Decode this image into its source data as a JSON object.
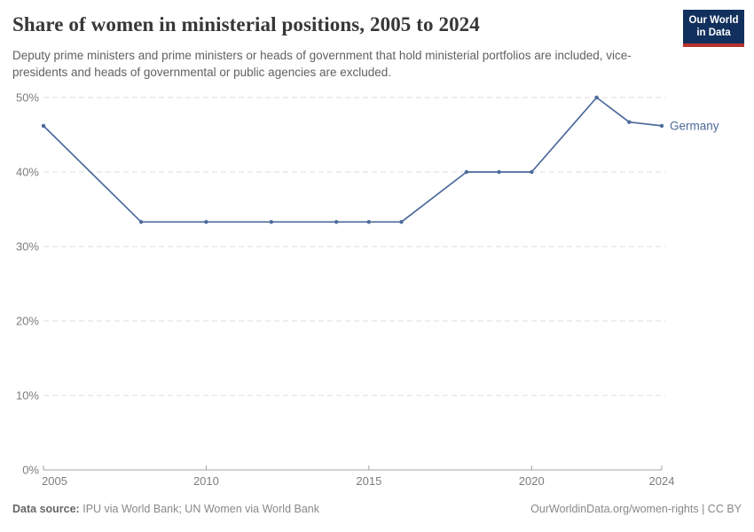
{
  "header": {
    "title": "Share of women in ministerial positions, 2005 to 2024",
    "subtitle": "Deputy prime ministers and prime ministers or heads of government that hold ministerial portfolios are included, vice-presidents and heads of governmental or public agencies are excluded.",
    "logo": {
      "line1": "Our World",
      "line2": "in Data"
    }
  },
  "footer": {
    "source_label": "Data source:",
    "source_text": "IPU via World Bank; UN Women via World Bank",
    "right_text": "OurWorldinData.org/women-rights | CC BY"
  },
  "colors": {
    "series_line": "#4C6A9C",
    "logo_background": "#12305D",
    "logo_red_stripe": "#B8332D",
    "gridline": "#DDDDDD",
    "axis": "#A3A3A3",
    "tick_label": "#7D7D7D"
  },
  "chart_data": {
    "type": "line",
    "title": "Share of women in ministerial positions, 2005 to 2024",
    "xlabel": "",
    "ylabel": "",
    "xlim": [
      2005,
      2024
    ],
    "ylim": [
      0,
      50
    ],
    "grid": "horizontal-dashed",
    "legend_position": "end-of-line-label",
    "x_ticks": [
      2005,
      2010,
      2015,
      2020,
      2024
    ],
    "x_tick_labels": [
      "2005",
      "2010",
      "2015",
      "2020",
      "2024"
    ],
    "y_ticks": [
      0,
      10,
      20,
      30,
      40,
      50
    ],
    "y_tick_labels": [
      "0%",
      "10%",
      "20%",
      "30%",
      "40%",
      "50%"
    ],
    "series": [
      {
        "name": "Germany",
        "end_label": "Germany",
        "points": [
          [
            2005,
            46.2
          ],
          [
            2008,
            33.3
          ],
          [
            2010,
            33.3
          ],
          [
            2012,
            33.3
          ],
          [
            2014,
            33.3
          ],
          [
            2015,
            33.3
          ],
          [
            2016,
            33.3
          ],
          [
            2018,
            40
          ],
          [
            2019,
            40
          ],
          [
            2020,
            40
          ],
          [
            2022,
            50
          ],
          [
            2023,
            46.7
          ],
          [
            2024,
            46.2
          ]
        ]
      }
    ]
  }
}
